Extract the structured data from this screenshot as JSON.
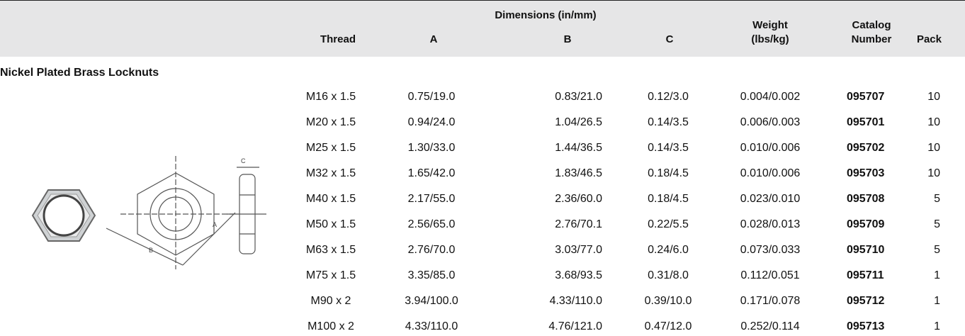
{
  "table": {
    "group_header": "Dimensions (in/mm)",
    "columns": [
      [
        "Thread"
      ],
      [
        "A"
      ],
      [
        "B"
      ],
      [
        "C"
      ],
      [
        "Weight",
        "(lbs/kg)"
      ],
      [
        "Catalog",
        "Number"
      ],
      [
        "Pack"
      ]
    ],
    "section": "Nickel Plated Brass Locknuts",
    "rows": [
      [
        "M16 x 1.5",
        "0.75/19.0",
        "0.83/21.0",
        "0.12/3.0",
        "0.004/0.002",
        "095707",
        "10"
      ],
      [
        "M20 x 1.5",
        "0.94/24.0",
        "1.04/26.5",
        "0.14/3.5",
        "0.006/0.003",
        "095701",
        "10"
      ],
      [
        "M25 x 1.5",
        "1.30/33.0",
        "1.44/36.5",
        "0.14/3.5",
        "0.010/0.006",
        "095702",
        "10"
      ],
      [
        "M32 x 1.5",
        "1.65/42.0",
        "1.83/46.5",
        "0.18/4.5",
        "0.010/0.006",
        "095703",
        "10"
      ],
      [
        "M40 x 1.5",
        "2.17/55.0",
        "2.36/60.0",
        "0.18/4.5",
        "0.023/0.010",
        "095708",
        "5"
      ],
      [
        "M50 x 1.5",
        "2.56/65.0",
        "2.76/70.1",
        "0.22/5.5",
        "0.028/0.013",
        "095709",
        "5"
      ],
      [
        "M63 x 1.5",
        "2.76/70.0",
        "3.03/77.0",
        "0.24/6.0",
        "0.073/0.033",
        "095710",
        "5"
      ],
      [
        "M75 x 1.5",
        "3.35/85.0",
        "3.68/93.5",
        "0.31/8.0",
        "0.112/0.051",
        "095711",
        "1"
      ],
      [
        "M90 x 2",
        "3.94/100.0",
        "4.33/110.0",
        "0.39/10.0",
        "0.171/0.078",
        "095712",
        "1"
      ],
      [
        "M100 x 2",
        "4.33/110.0",
        "4.76/121.0",
        "0.47/12.0",
        "0.252/0.114",
        "095713",
        "1"
      ]
    ]
  },
  "diagram": {
    "labels": [
      "B",
      "A",
      "C"
    ]
  }
}
